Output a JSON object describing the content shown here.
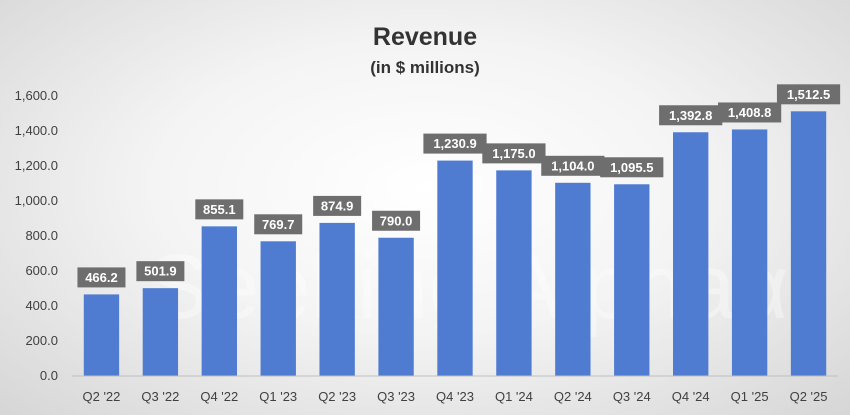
{
  "chart_data": {
    "type": "bar",
    "title": "Revenue",
    "subtitle": "(in $ millions)",
    "xlabel": "",
    "ylabel": "",
    "categories": [
      "Q2 '22",
      "Q3 '22",
      "Q4 '22",
      "Q1 '23",
      "Q2 '23",
      "Q3 '23",
      "Q4 '23",
      "Q1 '24",
      "Q2 '24",
      "Q3 '24",
      "Q4 '24",
      "Q1 '25",
      "Q2 '25"
    ],
    "values": [
      466.2,
      501.9,
      855.1,
      769.7,
      874.9,
      790.0,
      1230.9,
      1175.0,
      1104.0,
      1095.5,
      1392.8,
      1408.8,
      1512.5
    ],
    "data_labels": [
      "466.2",
      "501.9",
      "855.1",
      "769.7",
      "874.9",
      "790.0",
      "1,230.9",
      "1,175.0",
      "1,104.0",
      "1,095.5",
      "1,392.8",
      "1,408.8",
      "1,512.5"
    ],
    "ylim": [
      0,
      1600
    ],
    "yticks": [
      0,
      200,
      400,
      600,
      800,
      1000,
      1200,
      1400,
      1600
    ],
    "ytick_labels": [
      "0.0",
      "200.0",
      "400.0",
      "600.0",
      "800.0",
      "1,000.0",
      "1,200.0",
      "1,400.0",
      "1,600.0"
    ],
    "grid": false,
    "legend": "none",
    "bar_color": "#4f7bd0",
    "label_box_color": "#6e6e6e",
    "watermark": "Seeking Alphaα"
  }
}
